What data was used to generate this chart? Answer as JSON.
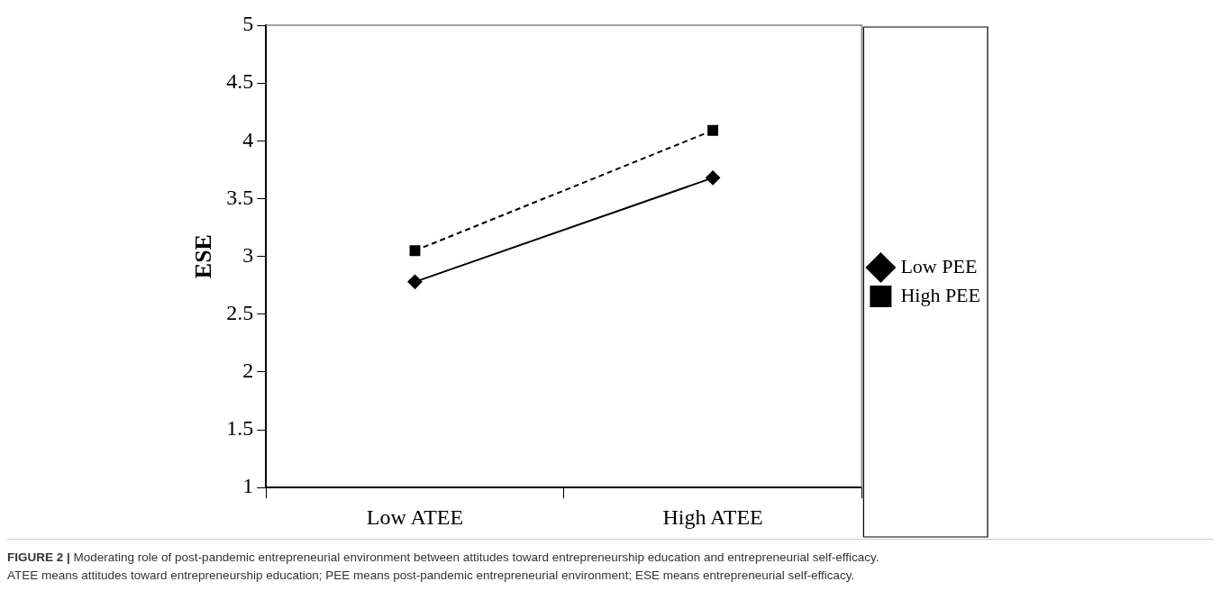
{
  "chart_data": {
    "type": "line",
    "ylabel": "ESE",
    "categories": [
      "Low ATEE",
      "High ATEE"
    ],
    "series": [
      {
        "name": "Low PEE",
        "color": "#000000",
        "values": [
          2.78,
          3.68
        ],
        "marker": "diamond",
        "line_style": "solid"
      },
      {
        "name": "High PEE",
        "color": "#000000",
        "values": [
          3.05,
          4.09
        ],
        "marker": "square",
        "line_style": "dashed"
      }
    ],
    "ylim": [
      1,
      5
    ],
    "yticks": [
      1,
      1.5,
      2,
      2.5,
      3,
      3.5,
      4,
      4.5,
      5
    ],
    "grid": false,
    "legend": "right",
    "annotations": [
      "FIGURE 2 |",
      "Moderating role of post-pandemic entrepreneurial environment between attitudes toward entrepreneurship education and entrepreneurial self-efficacy.",
      "ATEE means attitudes toward entrepreneurship education; PEE means post-pandemic entrepreneurial environment; ESE means entrepreneurial self-efficacy."
    ]
  }
}
